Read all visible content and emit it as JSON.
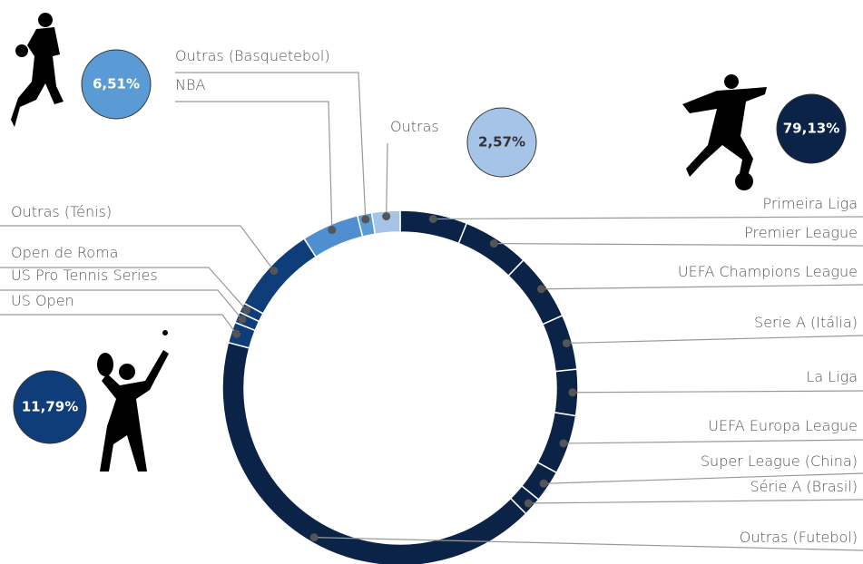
{
  "chart_data": {
    "type": "donut",
    "categories": [
      "Primeira Liga",
      "Premier League",
      "UEFA Champions League",
      "Serie A (Itália)",
      "La Liga",
      "UEFA Europa League",
      "Super League (China)",
      "Série A (Brasil)",
      "Outras (Futebol)",
      "US Open",
      "US Pro Tennis Series",
      "Open de Roma",
      "Outras (Ténis)",
      "NBA",
      "Outras (Basquetebol)",
      "Outras"
    ],
    "values": [
      6.1,
      6.1,
      6.1,
      5.0,
      4.2,
      5.4,
      2.9,
      1.7,
      41.63,
      1.9,
      1.0,
      0.9,
      7.99,
      5.21,
      1.3,
      2.57
    ],
    "colors": [
      "#0b2347",
      "#0b2347",
      "#0b2347",
      "#0b2347",
      "#0b2347",
      "#0b2347",
      "#0b2347",
      "#0b2347",
      "#0b2347",
      "#0e3d7a",
      "#0e3d7a",
      "#0e3d7a",
      "#0e3d7a",
      "#4f8fcf",
      "#5b9bd5",
      "#a6c4e8"
    ],
    "groups": [
      {
        "value": 79.13,
        "value_label": "79,13%",
        "color": "#0b2347"
      },
      {
        "value": 11.79,
        "value_label": "11,79%",
        "color": "#0e3d7a"
      },
      {
        "value": 6.51,
        "value_label": "6,51%",
        "color": "#5b9bd5"
      },
      {
        "value": 2.57,
        "value_label": "2,57%",
        "color": "#a6c4e8"
      }
    ]
  }
}
